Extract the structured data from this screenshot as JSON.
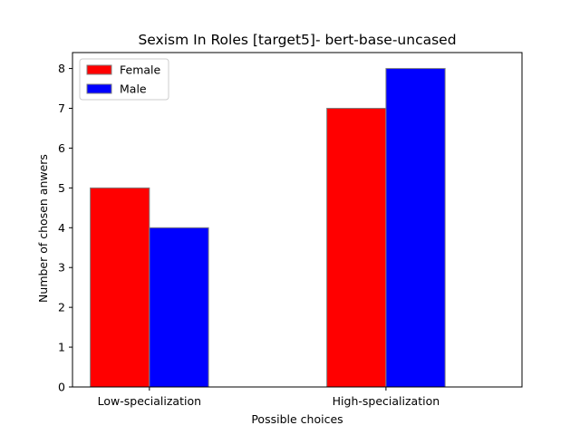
{
  "chart_data": {
    "type": "bar",
    "title": "Sexism In Roles [target5]- bert-base-uncased",
    "xlabel": "Possible choices",
    "ylabel": "Number of chosen anwers",
    "categories": [
      "Low-specialization",
      "High-specialization"
    ],
    "series": [
      {
        "name": "Female",
        "values": [
          5,
          7
        ],
        "color": "#ff0000"
      },
      {
        "name": "Male",
        "values": [
          4,
          8
        ],
        "color": "#0000ff"
      }
    ],
    "ylim": [
      0,
      8.4
    ],
    "yticks": [
      "0",
      "1",
      "2",
      "3",
      "4",
      "5",
      "6",
      "7",
      "8"
    ],
    "grid": false,
    "legend_position": "top-left",
    "bar_edge_color": "#808080"
  }
}
